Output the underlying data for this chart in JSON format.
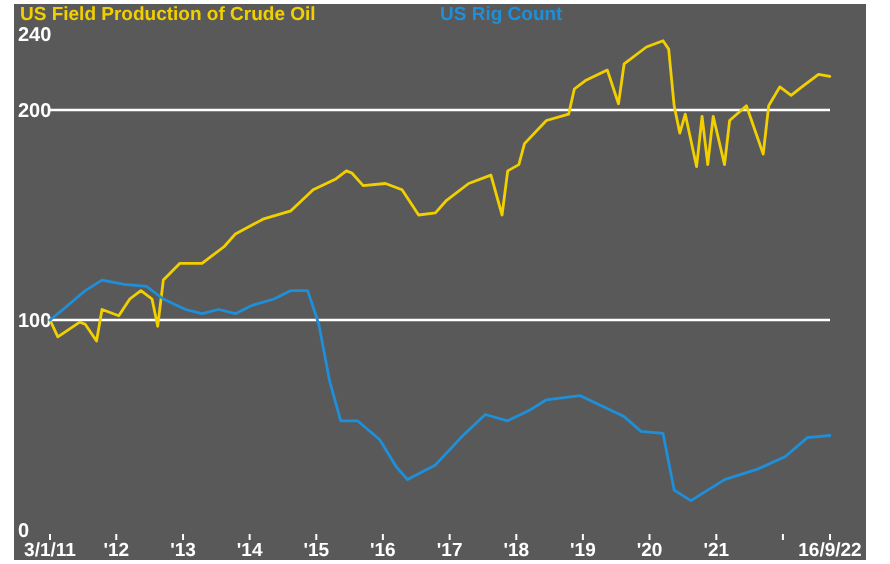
{
  "chart_data": {
    "type": "line",
    "xlim": [
      "2011-01-03",
      "2022-09-16"
    ],
    "xticks": [
      {
        "value": "2011-01-03",
        "label": "3/1/11"
      },
      {
        "value": "2012-01-01",
        "label": "'12"
      },
      {
        "value": "2013-01-01",
        "label": "'13"
      },
      {
        "value": "2014-01-01",
        "label": "'14"
      },
      {
        "value": "2015-01-01",
        "label": "'15"
      },
      {
        "value": "2016-01-01",
        "label": "'16"
      },
      {
        "value": "2017-01-01",
        "label": "'17"
      },
      {
        "value": "2018-01-01",
        "label": "'18"
      },
      {
        "value": "2019-01-01",
        "label": "'19"
      },
      {
        "value": "2020-01-01",
        "label": "'20"
      },
      {
        "value": "2021-01-01",
        "label": "'21"
      },
      {
        "value": "2022-01-01",
        "label": null
      },
      {
        "value": "2022-09-16",
        "label": "16/9/22"
      }
    ],
    "ylim": [
      0,
      240
    ],
    "yticks": [
      0,
      100,
      200,
      240
    ],
    "grid": "y",
    "legend": "top",
    "series": [
      {
        "name": "US Field Production of Crude Oil",
        "color": "#f2d000",
        "x": [
          "2011-01-03",
          "2011-02",
          "2011-06",
          "2011-07",
          "2011-09",
          "2011-10",
          "2012-01",
          "2012-03",
          "2012-05",
          "2012-07",
          "2012-08",
          "2012-09",
          "2012-12",
          "2013-04",
          "2013-08",
          "2013-10",
          "2014-03",
          "2014-08",
          "2014-12",
          "2015-04",
          "2015-06",
          "2015-07",
          "2015-09",
          "2016-01",
          "2016-04",
          "2016-07",
          "2016-10",
          "2016-12",
          "2017-04",
          "2017-08",
          "2017-10",
          "2017-11",
          "2018-01",
          "2018-02",
          "2018-06",
          "2018-10",
          "2018-11",
          "2019-01",
          "2019-05",
          "2019-07",
          "2019-08",
          "2019-12",
          "2020-03",
          "2020-04",
          "2020-05",
          "2020-06",
          "2020-07",
          "2020-09",
          "2020-10",
          "2020-11",
          "2020-12",
          "2021-02",
          "2021-03",
          "2021-06",
          "2021-09",
          "2021-10",
          "2021-12",
          "2022-02",
          "2022-04",
          "2022-07",
          "2022-09"
        ],
        "values": [
          100,
          92,
          99,
          98,
          90,
          105,
          102,
          110,
          114,
          110,
          97,
          119,
          127,
          127,
          135,
          141,
          148,
          152,
          162,
          167,
          171,
          170,
          164,
          165,
          162,
          150,
          151,
          157,
          165,
          169,
          150,
          171,
          174,
          184,
          195,
          198,
          210,
          214,
          219,
          203,
          222,
          230,
          233,
          229,
          202,
          189,
          198,
          173,
          197,
          174,
          197,
          174,
          195,
          202,
          179,
          202,
          211,
          207,
          211,
          217,
          216
        ]
      },
      {
        "name": "US Rig Count",
        "color": "#1e8fd8",
        "x": [
          "2011-01-03",
          "2011-03",
          "2011-07",
          "2011-10",
          "2012-02",
          "2012-06",
          "2012-09",
          "2013-01",
          "2013-04",
          "2013-07",
          "2013-10",
          "2014-01",
          "2014-05",
          "2014-08",
          "2014-11",
          "2015-01",
          "2015-03",
          "2015-05",
          "2015-08",
          "2015-12",
          "2016-03",
          "2016-05",
          "2016-10",
          "2017-03",
          "2017-07",
          "2017-11",
          "2018-03",
          "2018-06",
          "2018-12",
          "2019-04",
          "2019-08",
          "2019-11",
          "2020-03",
          "2020-05",
          "2020-08",
          "2021-02",
          "2021-08",
          "2022-01",
          "2022-05",
          "2022-09"
        ],
        "values": [
          100,
          105,
          114,
          119,
          117,
          116,
          110,
          105,
          103,
          105,
          103,
          107,
          110,
          114,
          114,
          98,
          71,
          52,
          52,
          43,
          30,
          24,
          31,
          45,
          55,
          52,
          57,
          62,
          64,
          59,
          54,
          47,
          46,
          19,
          14,
          24,
          29,
          35,
          44,
          45
        ]
      }
    ]
  }
}
